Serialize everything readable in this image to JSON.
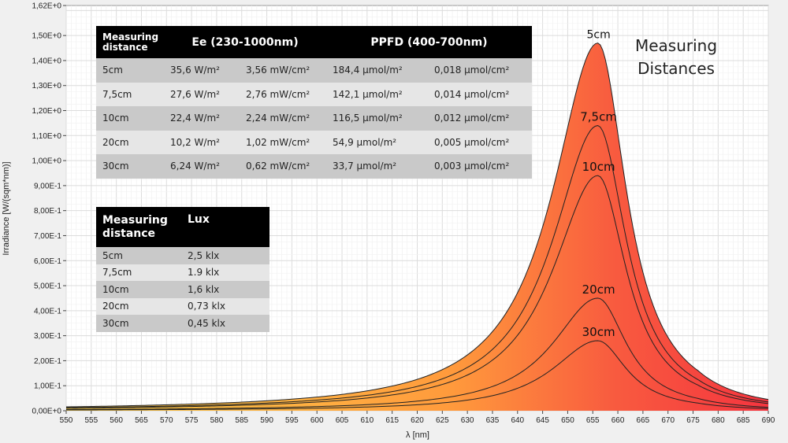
{
  "chart_data": {
    "type": "area",
    "xlabel": "λ [nm]",
    "ylabel": "Irradiance [W/(sqm*nm)]",
    "xlim": [
      550,
      690
    ],
    "ylim": [
      0,
      1.62
    ],
    "x_ticks": [
      "550",
      "555",
      "560",
      "565",
      "570",
      "575",
      "580",
      "585",
      "590",
      "595",
      "600",
      "605",
      "610",
      "615",
      "620",
      "625",
      "630",
      "635",
      "640",
      "645",
      "650",
      "655",
      "660",
      "665",
      "670",
      "675",
      "680",
      "685",
      "690"
    ],
    "y_ticks": [
      "0,00E+0",
      "1,00E-1",
      "2,00E-1",
      "3,00E-1",
      "4,00E-1",
      "5,00E-1",
      "6,00E-1",
      "7,00E-1",
      "8,00E-1",
      "9,00E-1",
      "1,00E+0",
      "1,10E+0",
      "1,20E+0",
      "1,30E+0",
      "1,40E+0",
      "1,50E+0",
      "1,62E+0"
    ],
    "grid": true,
    "annotation_title": "Measuring Distances",
    "peak_wavelength": 656,
    "series": [
      {
        "name": "5cm",
        "peak": 1.47
      },
      {
        "name": "7,5cm",
        "peak": 1.14
      },
      {
        "name": "10cm",
        "peak": 0.94
      },
      {
        "name": "20cm",
        "peak": 0.45
      },
      {
        "name": "30cm",
        "peak": 0.28
      }
    ],
    "colors": {
      "peak_fill": "#f5343f",
      "low_fill": "#ffd24a",
      "line": "#222222",
      "grid": "#d9d9d9"
    }
  },
  "table1": {
    "h_distance_1": "Measuring",
    "h_distance_2": "distance",
    "h_ee": "Ee (230-1000nm)",
    "h_ppfd": "PPFD (400-700nm)",
    "rows": [
      {
        "d": "5cm",
        "ee_w": "35,6 W/m²",
        "ee_mw": "3,56 mW/cm²",
        "ppfd_m": "184,4 µmol/m²",
        "ppfd_cm": "0,018 µmol/cm²"
      },
      {
        "d": "7,5cm",
        "ee_w": "27,6 W/m²",
        "ee_mw": "2,76 mW/cm²",
        "ppfd_m": "142,1 µmol/m²",
        "ppfd_cm": "0,014 µmol/cm²"
      },
      {
        "d": "10cm",
        "ee_w": "22,4 W/m²",
        "ee_mw": "2,24 mW/cm²",
        "ppfd_m": "116,5 µmol/m²",
        "ppfd_cm": "0,012 µmol/cm²"
      },
      {
        "d": "20cm",
        "ee_w": "10,2 W/m²",
        "ee_mw": "1,02 mW/cm²",
        "ppfd_m": "54,9 µmol/m²",
        "ppfd_cm": "0,005 µmol/cm²"
      },
      {
        "d": "30cm",
        "ee_w": "6,24 W/m²",
        "ee_mw": "0,62 mW/cm²",
        "ppfd_m": "33,7 µmol/m²",
        "ppfd_cm": "0,003 µmol/cm²"
      }
    ]
  },
  "table2": {
    "h_distance_1": "Measuring",
    "h_distance_2": "distance",
    "h_lux": "Lux",
    "rows": [
      {
        "d": "5cm",
        "lux": "2,5 klx"
      },
      {
        "d": "7,5cm",
        "lux": "1.9 klx"
      },
      {
        "d": "10cm",
        "lux": "1,6 klx"
      },
      {
        "d": "20cm",
        "lux": "0,73 klx"
      },
      {
        "d": "30cm",
        "lux": "0,45 klx"
      }
    ]
  }
}
